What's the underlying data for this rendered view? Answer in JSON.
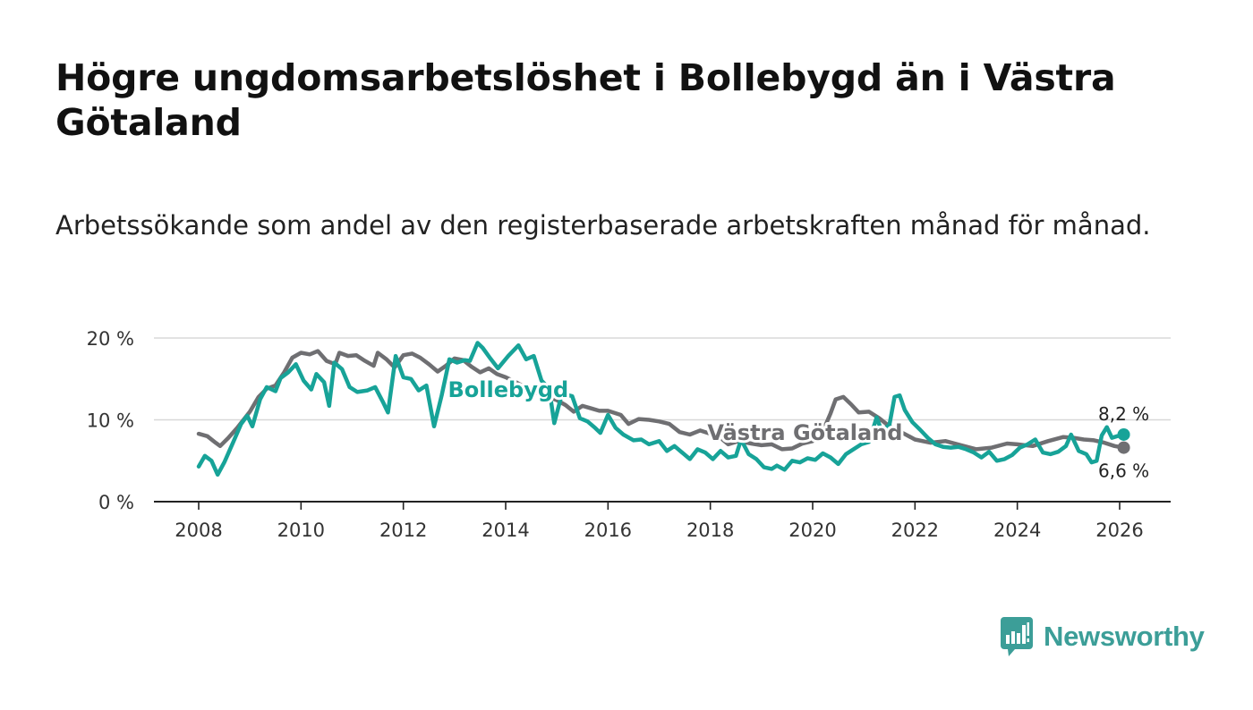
{
  "title": "Högre ungdomsarbetslöshet i Bollebygd än i Västra Götaland",
  "subtitle": "Arbetssökande som andel av den registerbaserade arbetskraften månad för månad.",
  "brand": {
    "name": "Newsworthy",
    "color": "#3c9e98"
  },
  "chart_data": {
    "type": "line",
    "x_unit": "year",
    "xlim": [
      2008,
      2026.2
    ],
    "ylim": [
      0,
      20
    ],
    "x_ticks": [
      2008,
      2010,
      2012,
      2014,
      2016,
      2018,
      2020,
      2022,
      2024,
      2026
    ],
    "x_tick_labels": [
      "2008",
      "2010",
      "2012",
      "2014",
      "2016",
      "2018",
      "2020",
      "2022",
      "2024",
      "2026"
    ],
    "y_ticks": [
      0,
      10,
      20
    ],
    "y_tick_labels": [
      "0 %",
      "10 %",
      "20 %"
    ],
    "gridlines": true,
    "series": [
      {
        "name": "Västra Götaland",
        "color": "#6f6f72",
        "end_label": "6,6 %",
        "points": [
          [
            2008.0,
            8.3
          ],
          [
            2008.17,
            8.0
          ],
          [
            2008.33,
            7.2
          ],
          [
            2008.42,
            6.8
          ],
          [
            2008.58,
            7.8
          ],
          [
            2008.75,
            9.0
          ],
          [
            2009.0,
            11.0
          ],
          [
            2009.17,
            12.8
          ],
          [
            2009.33,
            13.8
          ],
          [
            2009.5,
            14.2
          ],
          [
            2009.67,
            15.8
          ],
          [
            2009.83,
            17.6
          ],
          [
            2010.0,
            18.2
          ],
          [
            2010.17,
            18.0
          ],
          [
            2010.33,
            18.4
          ],
          [
            2010.5,
            17.2
          ],
          [
            2010.67,
            16.8
          ],
          [
            2010.75,
            18.2
          ],
          [
            2010.92,
            17.8
          ],
          [
            2011.08,
            17.9
          ],
          [
            2011.25,
            17.2
          ],
          [
            2011.42,
            16.6
          ],
          [
            2011.5,
            18.2
          ],
          [
            2011.67,
            17.4
          ],
          [
            2011.83,
            16.4
          ],
          [
            2012.0,
            17.9
          ],
          [
            2012.17,
            18.1
          ],
          [
            2012.33,
            17.6
          ],
          [
            2012.5,
            16.8
          ],
          [
            2012.67,
            15.9
          ],
          [
            2012.83,
            16.6
          ],
          [
            2013.0,
            17.5
          ],
          [
            2013.17,
            17.3
          ],
          [
            2013.33,
            16.5
          ],
          [
            2013.5,
            15.8
          ],
          [
            2013.67,
            16.3
          ],
          [
            2013.83,
            15.6
          ],
          [
            2014.0,
            15.2
          ],
          [
            2014.2,
            14.6
          ],
          [
            2014.4,
            13.9
          ],
          [
            2014.6,
            13.3
          ],
          [
            2014.8,
            12.9
          ],
          [
            2015.0,
            12.4
          ],
          [
            2015.17,
            11.8
          ],
          [
            2015.33,
            11.0
          ],
          [
            2015.5,
            11.7
          ],
          [
            2015.67,
            11.4
          ],
          [
            2015.83,
            11.1
          ],
          [
            2016.0,
            11.1
          ],
          [
            2016.25,
            10.6
          ],
          [
            2016.4,
            9.5
          ],
          [
            2016.6,
            10.1
          ],
          [
            2016.8,
            10.0
          ],
          [
            2017.0,
            9.8
          ],
          [
            2017.2,
            9.5
          ],
          [
            2017.4,
            8.5
          ],
          [
            2017.6,
            8.2
          ],
          [
            2017.8,
            8.7
          ],
          [
            2018.0,
            8.3
          ],
          [
            2018.2,
            7.8
          ],
          [
            2018.35,
            7.0
          ],
          [
            2018.55,
            7.4
          ],
          [
            2018.8,
            7.1
          ],
          [
            2019.0,
            6.9
          ],
          [
            2019.2,
            7.0
          ],
          [
            2019.4,
            6.4
          ],
          [
            2019.6,
            6.5
          ],
          [
            2019.8,
            7.1
          ],
          [
            2020.0,
            7.4
          ],
          [
            2020.2,
            8.6
          ],
          [
            2020.35,
            10.8
          ],
          [
            2020.45,
            12.5
          ],
          [
            2020.6,
            12.8
          ],
          [
            2020.75,
            11.9
          ],
          [
            2020.9,
            10.9
          ],
          [
            2021.1,
            11.0
          ],
          [
            2021.3,
            10.2
          ],
          [
            2021.5,
            9.2
          ],
          [
            2021.7,
            8.6
          ],
          [
            2022.0,
            7.6
          ],
          [
            2022.3,
            7.2
          ],
          [
            2022.6,
            7.4
          ],
          [
            2022.9,
            6.9
          ],
          [
            2023.2,
            6.4
          ],
          [
            2023.5,
            6.6
          ],
          [
            2023.8,
            7.1
          ],
          [
            2024.0,
            7.0
          ],
          [
            2024.3,
            6.8
          ],
          [
            2024.6,
            7.4
          ],
          [
            2024.9,
            7.9
          ],
          [
            2025.1,
            7.8
          ],
          [
            2025.3,
            7.6
          ],
          [
            2025.5,
            7.5
          ],
          [
            2025.7,
            7.2
          ],
          [
            2025.9,
            6.8
          ],
          [
            2026.08,
            6.6
          ]
        ]
      },
      {
        "name": "Bollebygd",
        "color": "#17a398",
        "end_label": "8,2 %",
        "points": [
          [
            2008.0,
            4.3
          ],
          [
            2008.12,
            5.6
          ],
          [
            2008.25,
            5.0
          ],
          [
            2008.37,
            3.3
          ],
          [
            2008.5,
            4.8
          ],
          [
            2008.67,
            7.2
          ],
          [
            2008.83,
            9.5
          ],
          [
            2008.95,
            10.5
          ],
          [
            2009.05,
            9.2
          ],
          [
            2009.2,
            12.5
          ],
          [
            2009.33,
            14.0
          ],
          [
            2009.5,
            13.5
          ],
          [
            2009.6,
            15.1
          ],
          [
            2009.75,
            15.8
          ],
          [
            2009.9,
            16.8
          ],
          [
            2010.05,
            14.8
          ],
          [
            2010.2,
            13.7
          ],
          [
            2010.3,
            15.6
          ],
          [
            2010.45,
            14.6
          ],
          [
            2010.55,
            11.7
          ],
          [
            2010.65,
            17.0
          ],
          [
            2010.8,
            16.2
          ],
          [
            2010.95,
            14.0
          ],
          [
            2011.1,
            13.4
          ],
          [
            2011.3,
            13.6
          ],
          [
            2011.45,
            14.0
          ],
          [
            2011.6,
            12.2
          ],
          [
            2011.7,
            10.9
          ],
          [
            2011.85,
            17.8
          ],
          [
            2012.0,
            15.2
          ],
          [
            2012.15,
            15.0
          ],
          [
            2012.3,
            13.6
          ],
          [
            2012.45,
            14.2
          ],
          [
            2012.6,
            9.2
          ],
          [
            2012.75,
            13.0
          ],
          [
            2012.9,
            17.4
          ],
          [
            2013.05,
            17.0
          ],
          [
            2013.2,
            17.3
          ],
          [
            2013.3,
            17.2
          ],
          [
            2013.45,
            19.4
          ],
          [
            2013.55,
            18.8
          ],
          [
            2013.7,
            17.5
          ],
          [
            2013.85,
            16.3
          ],
          [
            2014.05,
            17.8
          ],
          [
            2014.25,
            19.1
          ],
          [
            2014.4,
            17.4
          ],
          [
            2014.55,
            17.8
          ],
          [
            2014.7,
            14.8
          ],
          [
            2014.85,
            13.8
          ],
          [
            2014.95,
            9.6
          ],
          [
            2015.1,
            13.2
          ],
          [
            2015.3,
            12.9
          ],
          [
            2015.45,
            10.2
          ],
          [
            2015.6,
            9.8
          ],
          [
            2015.75,
            9.0
          ],
          [
            2015.85,
            8.4
          ],
          [
            2016.0,
            10.6
          ],
          [
            2016.15,
            9.0
          ],
          [
            2016.3,
            8.2
          ],
          [
            2016.5,
            7.5
          ],
          [
            2016.65,
            7.6
          ],
          [
            2016.8,
            7.0
          ],
          [
            2017.0,
            7.4
          ],
          [
            2017.15,
            6.2
          ],
          [
            2017.3,
            6.8
          ],
          [
            2017.45,
            6.0
          ],
          [
            2017.6,
            5.2
          ],
          [
            2017.75,
            6.4
          ],
          [
            2017.9,
            6.0
          ],
          [
            2018.05,
            5.2
          ],
          [
            2018.2,
            6.2
          ],
          [
            2018.35,
            5.4
          ],
          [
            2018.5,
            5.6
          ],
          [
            2018.6,
            7.6
          ],
          [
            2018.75,
            5.8
          ],
          [
            2018.9,
            5.2
          ],
          [
            2019.05,
            4.2
          ],
          [
            2019.2,
            4.0
          ],
          [
            2019.3,
            4.4
          ],
          [
            2019.45,
            3.9
          ],
          [
            2019.6,
            5.0
          ],
          [
            2019.75,
            4.8
          ],
          [
            2019.9,
            5.3
          ],
          [
            2020.05,
            5.1
          ],
          [
            2020.2,
            5.9
          ],
          [
            2020.35,
            5.4
          ],
          [
            2020.5,
            4.6
          ],
          [
            2020.65,
            5.8
          ],
          [
            2020.8,
            6.4
          ],
          [
            2020.95,
            7.0
          ],
          [
            2021.1,
            7.3
          ],
          [
            2021.25,
            10.3
          ],
          [
            2021.35,
            8.6
          ],
          [
            2021.5,
            9.4
          ],
          [
            2021.6,
            12.8
          ],
          [
            2021.7,
            13.0
          ],
          [
            2021.8,
            11.2
          ],
          [
            2021.95,
            9.7
          ],
          [
            2022.1,
            8.8
          ],
          [
            2022.25,
            7.8
          ],
          [
            2022.4,
            7.0
          ],
          [
            2022.55,
            6.7
          ],
          [
            2022.7,
            6.6
          ],
          [
            2022.85,
            6.7
          ],
          [
            2023.0,
            6.4
          ],
          [
            2023.15,
            6.0
          ],
          [
            2023.3,
            5.4
          ],
          [
            2023.45,
            6.1
          ],
          [
            2023.6,
            5.0
          ],
          [
            2023.75,
            5.2
          ],
          [
            2023.9,
            5.7
          ],
          [
            2024.05,
            6.6
          ],
          [
            2024.2,
            7.0
          ],
          [
            2024.35,
            7.6
          ],
          [
            2024.5,
            6.0
          ],
          [
            2024.65,
            5.8
          ],
          [
            2024.8,
            6.1
          ],
          [
            2024.95,
            6.8
          ],
          [
            2025.05,
            8.2
          ],
          [
            2025.2,
            6.2
          ],
          [
            2025.35,
            5.8
          ],
          [
            2025.45,
            4.8
          ],
          [
            2025.55,
            5.0
          ],
          [
            2025.65,
            8.1
          ],
          [
            2025.75,
            9.1
          ],
          [
            2025.85,
            7.8
          ],
          [
            2025.95,
            8.0
          ],
          [
            2026.08,
            8.2
          ]
        ]
      }
    ],
    "annotations": [
      {
        "text": "Bollebygd",
        "series": "Bollebygd"
      },
      {
        "text": "Västra Götaland",
        "series": "Västra Götaland"
      }
    ]
  }
}
